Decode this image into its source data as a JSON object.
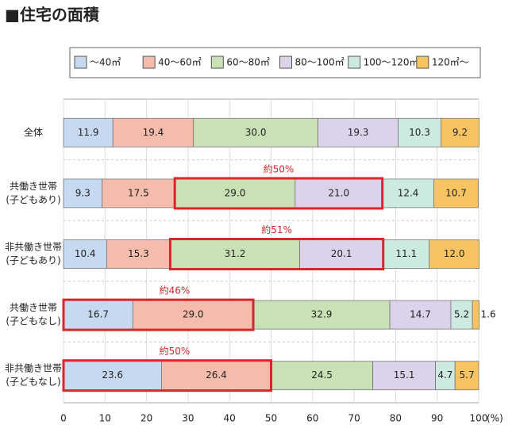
{
  "chart_data": {
    "type": "stacked-bar",
    "orientation": "horizontal",
    "title": "■住宅の面積",
    "categories": [
      [
        "全体"
      ],
      [
        "共働き世帯",
        "(子どもあり)"
      ],
      [
        "非共働き世帯",
        "(子どもあり)"
      ],
      [
        "共働き世帯",
        "(子どもなし)"
      ],
      [
        "非共働き世帯",
        "(子どもなし)"
      ]
    ],
    "series": [
      {
        "name": "～40㎡",
        "color": "#c6d9f1",
        "values": [
          11.9,
          9.3,
          10.4,
          16.7,
          23.6
        ],
        "value_labels": [
          "11.9",
          "9.3",
          "10.4",
          "16.7",
          "23.6"
        ]
      },
      {
        "name": "40～60㎡",
        "color": "#f6bcab",
        "values": [
          19.4,
          17.5,
          15.3,
          29.0,
          26.4
        ],
        "value_labels": [
          "19.4",
          "17.5",
          "15.3",
          "29.0",
          "26.4"
        ]
      },
      {
        "name": "60～80㎡",
        "color": "#c8e2b5",
        "values": [
          30.0,
          29.0,
          31.2,
          32.9,
          24.5
        ],
        "value_labels": [
          "30.0",
          "29.0",
          "31.2",
          "32.9",
          "24.5"
        ]
      },
      {
        "name": "80～100㎡",
        "color": "#dcd2ea",
        "values": [
          19.3,
          21.0,
          20.1,
          14.7,
          15.1
        ],
        "value_labels": [
          "19.3",
          "21.0",
          "20.1",
          "14.7",
          "15.1"
        ]
      },
      {
        "name": "100～120㎡",
        "color": "#cdeae1",
        "values": [
          10.3,
          12.4,
          11.1,
          5.2,
          4.7
        ],
        "value_labels": [
          "10.3",
          "12.4",
          "11.1",
          "5.2",
          "4.7"
        ]
      },
      {
        "name": "120㎡～",
        "color": "#f8c462",
        "values": [
          9.2,
          10.7,
          12.0,
          1.6,
          5.7
        ],
        "value_labels": [
          "9.2",
          "10.7",
          "12.0",
          "1.6",
          "5.7"
        ]
      }
    ],
    "annotations": [
      null,
      "約50%",
      "約51%",
      "約46%",
      "約50%"
    ],
    "xlim": [
      0,
      100
    ],
    "xticks": [
      0,
      10,
      20,
      30,
      40,
      50,
      60,
      70,
      80,
      90,
      100
    ],
    "x_unit": "(%)"
  }
}
